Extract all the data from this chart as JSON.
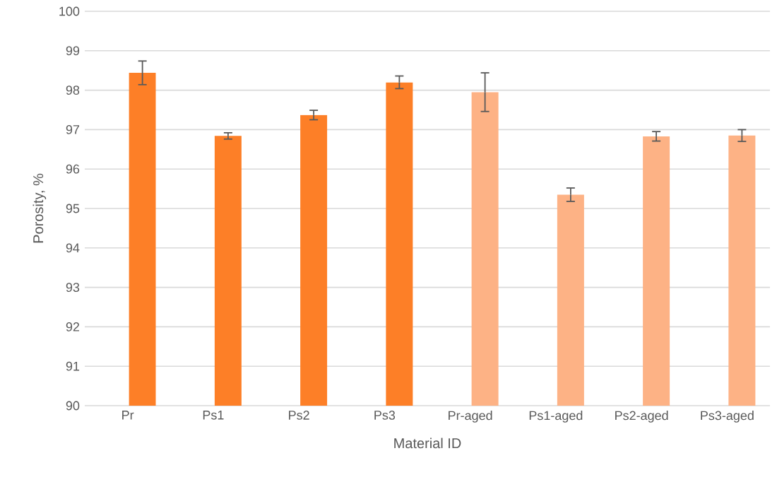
{
  "chart_data": {
    "type": "bar",
    "xlabel": "Material ID",
    "ylabel": "Porosity, %",
    "categories": [
      "Pr",
      "Ps1",
      "Ps2",
      "Ps3",
      "Pr-aged",
      "Ps1-aged",
      "Ps2-aged",
      "Ps3-aged"
    ],
    "values": [
      98.44,
      96.84,
      97.37,
      98.2,
      97.95,
      95.35,
      96.83,
      96.85
    ],
    "errors": [
      0.3,
      0.08,
      0.12,
      0.16,
      0.49,
      0.17,
      0.12,
      0.15
    ],
    "colors": [
      "#fd7f27",
      "#fd7f27",
      "#fd7f27",
      "#fd7f27",
      "#fdb285",
      "#fdb285",
      "#fdb285",
      "#fdb285"
    ],
    "ylim": [
      90,
      100
    ],
    "yticks": [
      90,
      91,
      92,
      93,
      94,
      95,
      96,
      97,
      98,
      99,
      100
    ],
    "grid": "y"
  }
}
